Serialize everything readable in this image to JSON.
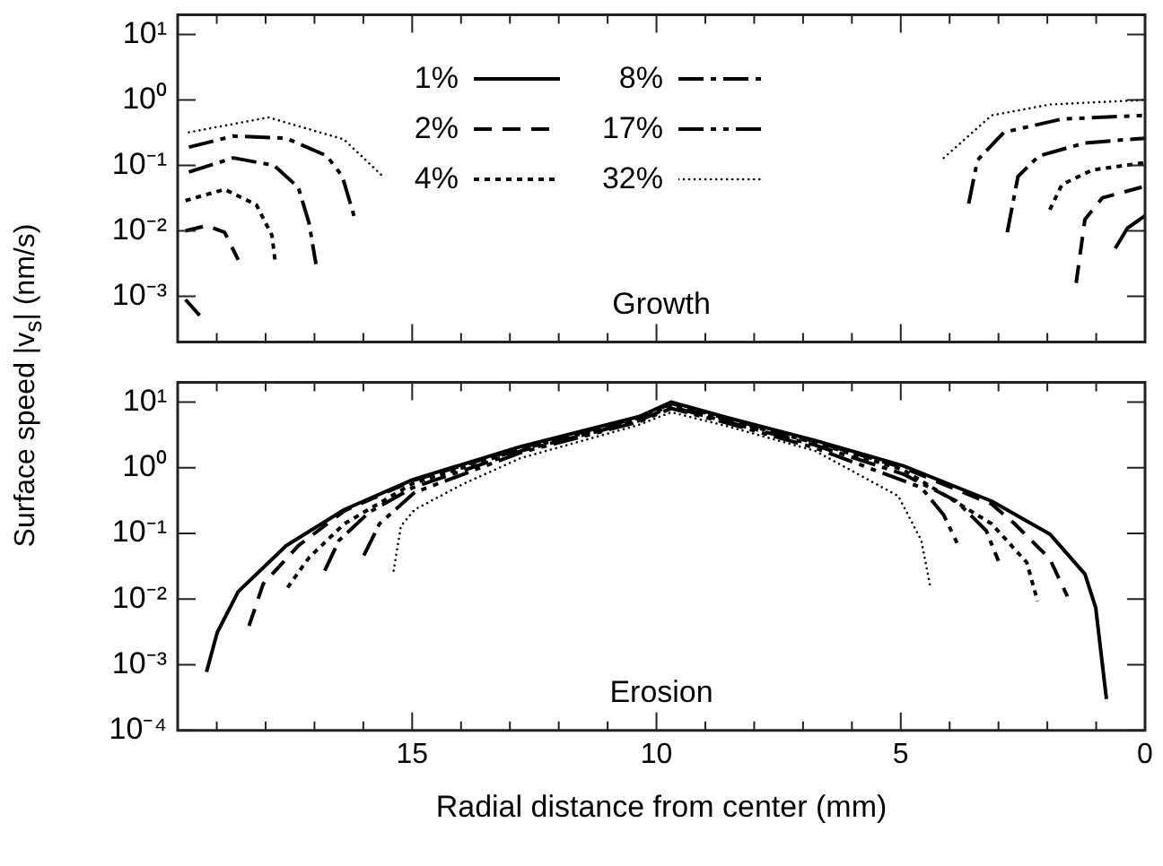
{
  "chart_data": [
    {
      "type": "line",
      "ylabel": "Surface speed |v$_{s}$| (nm/s)",
      "annotations": [
        "Growth"
      ],
      "log": "y",
      "tick_labels": "y",
      "legend": "top",
      "xlim": [
        19.8,
        0
      ],
      "xticks": [
        {
          "value": 19,
          "label": null
        },
        {
          "value": 18,
          "label": null
        },
        {
          "value": 17,
          "label": null
        },
        {
          "value": 16,
          "label": null
        },
        15,
        {
          "value": 14,
          "label": null
        },
        {
          "value": 13,
          "label": null
        },
        {
          "value": 12,
          "label": null
        },
        {
          "value": 11,
          "label": null
        },
        10,
        {
          "value": 9,
          "label": null
        },
        {
          "value": 8,
          "label": null
        },
        {
          "value": 7,
          "label": null
        },
        {
          "value": 6,
          "label": null
        },
        5,
        {
          "value": 4,
          "label": null
        },
        {
          "value": 3,
          "label": null
        },
        {
          "value": 2,
          "label": null
        },
        {
          "value": 1,
          "label": null
        },
        0
      ],
      "ylim": [
        0.0002,
        20
      ],
      "yticks": [
        {
          "value": 10,
          "label": "10¹"
        },
        {
          "value": 1,
          "label": "10⁰"
        },
        {
          "value": 0.1,
          "label": "10⁻¹"
        },
        {
          "value": 0.01,
          "label": "10⁻²"
        },
        {
          "value": 0.001,
          "label": "10⁻³"
        }
      ],
      "series": [
        {
          "name": "1%",
          "color": "#000000",
          "line_style": "solid",
          "x": [
            19.64,
            19.35,
            10,
            0.61,
            0.36,
            0
          ],
          "values": [
            0.00089,
            0.00051,
            null,
            0.0054,
            0.011,
            0.017
          ]
        },
        {
          "name": "2%",
          "color": "#000000",
          "line_style": "dashed",
          "x": [
            19.64,
            19.21,
            18.84,
            18.56,
            10,
            1.41,
            1.23,
            0.87,
            0
          ],
          "values": [
            0.01,
            0.012,
            0.0095,
            0.0036,
            null,
            0.0016,
            0.015,
            0.032,
            0.048
          ]
        },
        {
          "name": "4%",
          "color": "#000000",
          "line_style": "dotted",
          "x": [
            19.64,
            18.84,
            18.19,
            17.87,
            17.8,
            10,
            1.95,
            1.7,
            1.08,
            0
          ],
          "values": [
            0.029,
            0.043,
            0.025,
            0.0085,
            0.0032,
            null,
            0.021,
            0.051,
            0.085,
            0.11
          ]
        },
        {
          "name": "8%",
          "color": "#000000",
          "line_style": "dashdot",
          "x": [
            19.57,
            18.66,
            17.83,
            17.33,
            17.11,
            16.97,
            10,
            2.82,
            2.6,
            2.17,
            1.23,
            0
          ],
          "values": [
            0.079,
            0.13,
            0.1,
            0.046,
            0.013,
            0.0031,
            null,
            0.0095,
            0.068,
            0.14,
            0.22,
            0.26
          ]
        },
        {
          "name": "17%",
          "color": "#000000",
          "line_style": "dashdotdot",
          "x": [
            19.57,
            18.66,
            17.58,
            16.75,
            16.43,
            16.17,
            10,
            3.61,
            3.43,
            2.89,
            1.7,
            0
          ],
          "values": [
            0.19,
            0.28,
            0.26,
            0.14,
            0.068,
            0.015,
            null,
            0.026,
            0.12,
            0.32,
            0.51,
            0.58
          ]
        },
        {
          "name": "32%",
          "color": "#000000",
          "line_style": "loosely dotted",
          "x": [
            19.57,
            17.94,
            16.4,
            15.6,
            10,
            4.12,
            3.14,
            1.95,
            0
          ],
          "values": [
            0.32,
            0.54,
            0.25,
            0.068,
            null,
            0.13,
            0.58,
            0.85,
            1.0
          ]
        }
      ]
    },
    {
      "type": "line",
      "xlabel": "Radial distance from center (mm)",
      "annotations": [
        "Erosion"
      ],
      "log": "y",
      "xlim": [
        19.8,
        0
      ],
      "xticks": [
        {
          "value": 19,
          "label": null
        },
        {
          "value": 18,
          "label": null
        },
        {
          "value": 17,
          "label": null
        },
        {
          "value": 16,
          "label": null
        },
        15,
        {
          "value": 14,
          "label": null
        },
        {
          "value": 13,
          "label": null
        },
        {
          "value": 12,
          "label": null
        },
        {
          "value": 11,
          "label": null
        },
        10,
        {
          "value": 9,
          "label": null
        },
        {
          "value": 8,
          "label": null
        },
        {
          "value": 7,
          "label": null
        },
        {
          "value": 6,
          "label": null
        },
        5,
        {
          "value": 4,
          "label": null
        },
        {
          "value": 3,
          "label": null
        },
        {
          "value": 2,
          "label": null
        },
        {
          "value": 1,
          "label": null
        },
        0
      ],
      "ylim": [
        0.0001,
        20
      ],
      "yticks": [
        {
          "value": 10,
          "label": "10¹"
        },
        {
          "value": 1,
          "label": "10⁰"
        },
        {
          "value": 0.1,
          "label": "10⁻¹"
        },
        {
          "value": 0.01,
          "label": "10⁻²"
        },
        {
          "value": 0.001,
          "label": "10⁻³"
        },
        {
          "value": 0.0001,
          "label": "10⁻⁴"
        }
      ],
      "series": [
        {
          "color": "#000000",
          "line_style": "solid",
          "x": [
            19.21,
            18.99,
            18.56,
            17.58,
            16.39,
            14.98,
            12.78,
            10.36,
            9.7,
            8.56,
            6.75,
            4.95,
            3.14,
            1.95,
            1.23,
            1.01,
            0.79
          ],
          "values": [
            0.00078,
            0.0031,
            0.013,
            0.065,
            0.23,
            0.66,
            2.1,
            6.0,
            10,
            5.8,
            2.6,
            1.07,
            0.31,
            0.098,
            0.024,
            0.0074,
            0.0003
          ]
        },
        {
          "color": "#000000",
          "line_style": "dashed",
          "x": [
            18.34,
            18.05,
            17.33,
            16.39,
            14.98,
            12.78,
            10.36,
            9.7,
            8.56,
            6.75,
            4.95,
            3.14,
            2.67,
            1.95,
            1.59
          ],
          "values": [
            0.0039,
            0.017,
            0.065,
            0.22,
            0.64,
            2.0,
            5.8,
            9.5,
            5.6,
            2.5,
            1.0,
            0.28,
            0.14,
            0.041,
            0.011
          ]
        },
        {
          "color": "#000000",
          "line_style": "dotted",
          "x": [
            17.55,
            17.11,
            16.39,
            14.98,
            12.78,
            10.36,
            9.7,
            8.56,
            6.75,
            4.95,
            3.14,
            2.42,
            2.2
          ],
          "values": [
            0.015,
            0.043,
            0.14,
            0.58,
            1.9,
            5.5,
            9.0,
            5.3,
            2.4,
            0.93,
            0.14,
            0.036,
            0.0093
          ]
        },
        {
          "color": "#000000",
          "line_style": "dashdot",
          "x": [
            16.79,
            16.5,
            15.88,
            14.98,
            12.78,
            10.36,
            9.7,
            8.56,
            6.75,
            4.95,
            3.86,
            3.25,
            3.0
          ],
          "values": [
            0.027,
            0.078,
            0.21,
            0.5,
            1.8,
            5.2,
            8.5,
            5.0,
            2.2,
            0.8,
            0.31,
            0.11,
            0.038
          ]
        },
        {
          "color": "#000000",
          "line_style": "dashdotdot",
          "x": [
            15.99,
            15.67,
            14.95,
            12.78,
            10.36,
            9.7,
            8.56,
            6.75,
            5.5,
            4.58,
            4.12,
            3.79
          ],
          "values": [
            0.046,
            0.14,
            0.42,
            1.7,
            5.0,
            8.0,
            4.8,
            2.0,
            0.9,
            0.5,
            0.19,
            0.058
          ]
        },
        {
          "color": "#000000",
          "line_style": "loosely dotted",
          "x": [
            15.38,
            15.23,
            14.95,
            13.97,
            12.78,
            10.36,
            9.7,
            8.56,
            6.75,
            5.05,
            4.58,
            4.4
          ],
          "values": [
            0.027,
            0.13,
            0.23,
            0.56,
            1.4,
            4.5,
            7.0,
            4.3,
            1.8,
            0.37,
            0.078,
            0.016
          ]
        }
      ]
    }
  ]
}
